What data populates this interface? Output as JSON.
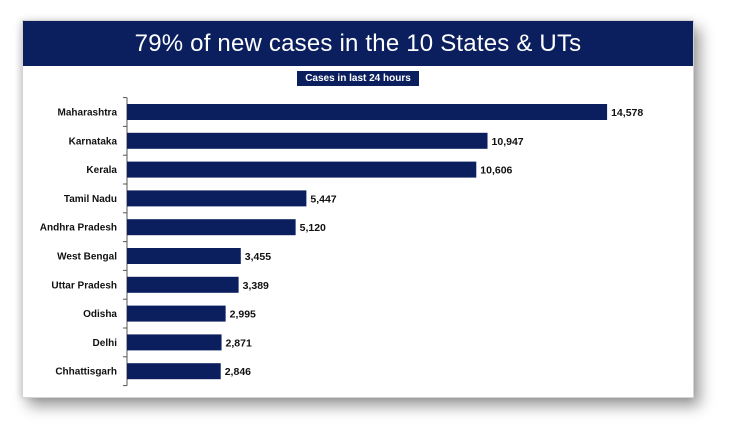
{
  "colors": {
    "primary": "#0b1f5f",
    "text": "#111111",
    "axis": "#555555"
  },
  "chart_data": {
    "type": "bar",
    "orientation": "horizontal",
    "title": "79% of new cases in the 10 States & UTs",
    "subtitle": "Cases in last 24 hours",
    "xlabel": "",
    "ylabel": "",
    "grid": false,
    "categories": [
      "Maharashtra",
      "Karnataka",
      "Kerala",
      "Tamil Nadu",
      "Andhra Pradesh",
      "West Bengal",
      "Uttar Pradesh",
      "Odisha",
      "Delhi",
      "Chhattisgarh"
    ],
    "values": [
      14578,
      10947,
      10606,
      5447,
      5120,
      3455,
      3389,
      2995,
      2871,
      2846
    ],
    "value_labels": [
      "14,578",
      "10,947",
      "10,606",
      "5,447",
      "5,120",
      "3,455",
      "3,389",
      "2,995",
      "2,871",
      "2,846"
    ],
    "xlim": [
      0,
      15000
    ]
  }
}
